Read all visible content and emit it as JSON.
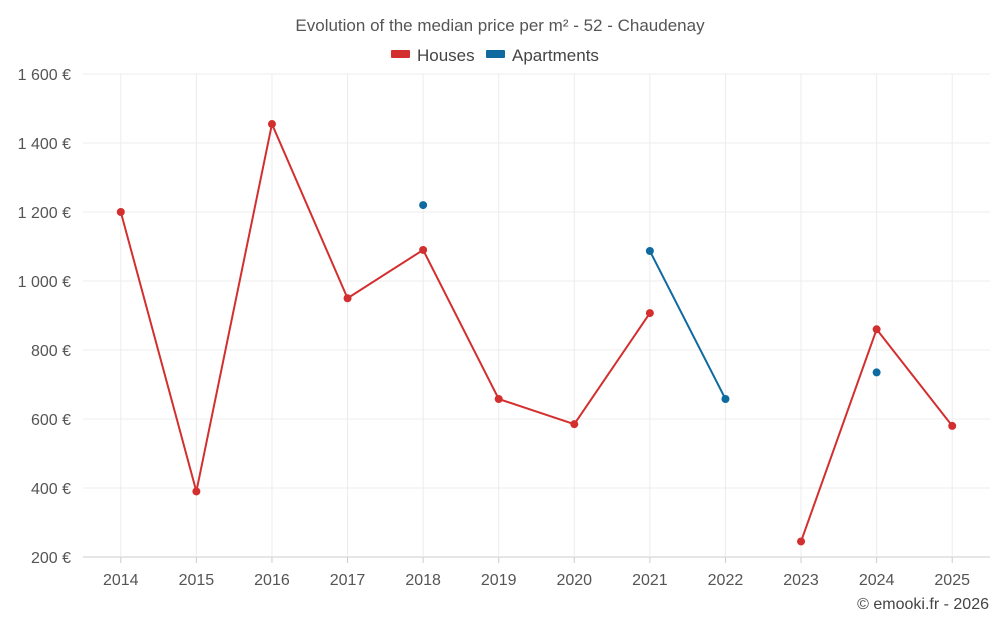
{
  "chart_data": {
    "type": "line",
    "title": "Evolution of the median price per m² - 52 - Chaudenay",
    "categories": [
      "2014",
      "2015",
      "2016",
      "2017",
      "2018",
      "2019",
      "2020",
      "2021",
      "2022",
      "2023",
      "2024",
      "2025"
    ],
    "ylim": [
      200,
      1600
    ],
    "yticks": [
      200,
      400,
      600,
      800,
      1000,
      1200,
      1400,
      1600
    ],
    "ytick_labels": [
      "200 €",
      "400 €",
      "600 €",
      "800 €",
      "1 000 €",
      "1 200 €",
      "1 400 €",
      "1 600 €"
    ],
    "xlabel": "",
    "ylabel": "",
    "grid": true,
    "legend_position": "top-center",
    "series": [
      {
        "name": "Houses",
        "color": "#d32f2f",
        "values": [
          1200,
          390,
          1455,
          950,
          1090,
          658,
          585,
          907,
          null,
          245,
          860,
          580
        ]
      },
      {
        "name": "Apartments",
        "color": "#0f6aa0",
        "values": [
          null,
          null,
          null,
          null,
          1220,
          null,
          null,
          1087,
          658,
          null,
          735,
          null
        ]
      }
    ]
  },
  "credit": "© emooki.fr - 2026",
  "colors": {
    "grid": "#ececec",
    "axis": "#cccccc"
  }
}
